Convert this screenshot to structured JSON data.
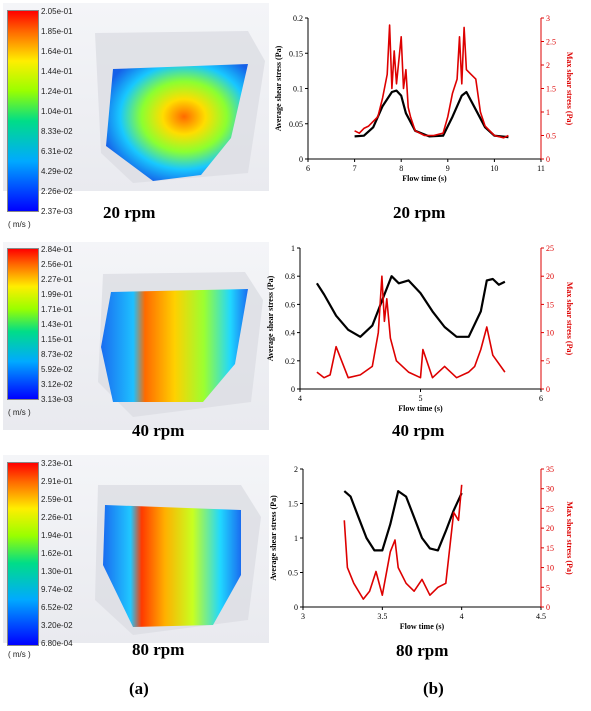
{
  "colorbars": [
    {
      "labels": [
        "2.05e-01",
        "1.85e-01",
        "1.64e-01",
        "1.44e-01",
        "1.24e-01",
        "1.04e-01",
        "8.33e-02",
        "6.31e-02",
        "4.29e-02",
        "2.26e-02",
        "2.37e-03"
      ],
      "unit": "( m/s )"
    },
    {
      "labels": [
        "2.84e-01",
        "2.56e-01",
        "2.27e-01",
        "1.99e-01",
        "1.71e-01",
        "1.43e-01",
        "1.15e-01",
        "8.73e-02",
        "5.92e-02",
        "3.12e-02",
        "3.13e-03"
      ],
      "unit": "( m/s )"
    },
    {
      "labels": [
        "3.23e-01",
        "2.91e-01",
        "2.59e-01",
        "2.26e-01",
        "1.94e-01",
        "1.62e-01",
        "1.30e-01",
        "9.74e-02",
        "6.52e-02",
        "3.20e-02",
        "6.80e-04"
      ],
      "unit": "( m/s )"
    }
  ],
  "captions": {
    "r1": "20 rpm",
    "r2": "40 rpm",
    "r3": "80 rpm",
    "left_r1": "20 rpm",
    "left_r2": "40 rpm",
    "left_r3": "80 rpm",
    "panel_a": "(a)",
    "panel_b": "(b)"
  },
  "colors": {
    "avg": "#000000",
    "max": "#dd0000"
  },
  "chart_data": [
    {
      "type": "line",
      "xlabel": "Flow time (s)",
      "ylabel": "Average shear stress (Pa)",
      "y2label": "Max shear stress (Pa)",
      "xlim": [
        6,
        11
      ],
      "ylim": [
        0,
        0.2
      ],
      "y2lim": [
        0,
        3
      ],
      "xticks": [
        "6",
        "7",
        "8",
        "9",
        "10",
        "11"
      ],
      "yticks": [
        "0",
        "0.05",
        "0.1",
        "0.15",
        "0.2"
      ],
      "y2ticks": [
        "0",
        "0.5",
        "1",
        "1.5",
        "2",
        "2.5",
        "3"
      ],
      "series": [
        {
          "axis": "left",
          "x": [
            7.0,
            7.2,
            7.4,
            7.6,
            7.8,
            7.9,
            8.0,
            8.1,
            8.3,
            8.6,
            8.9,
            9.1,
            9.3,
            9.4,
            9.6,
            9.8,
            10.0,
            10.3
          ],
          "y": [
            0.032,
            0.033,
            0.045,
            0.075,
            0.095,
            0.097,
            0.09,
            0.065,
            0.04,
            0.032,
            0.033,
            0.06,
            0.09,
            0.095,
            0.07,
            0.045,
            0.033,
            0.031
          ]
        },
        {
          "axis": "right",
          "x": [
            7.0,
            7.1,
            7.2,
            7.3,
            7.5,
            7.6,
            7.7,
            7.75,
            7.8,
            7.85,
            7.9,
            8.0,
            8.05,
            8.1,
            8.15,
            8.2,
            8.3,
            8.5,
            8.7,
            8.9,
            9.0,
            9.1,
            9.2,
            9.25,
            9.3,
            9.35,
            9.4,
            9.5,
            9.6,
            9.7,
            9.8,
            10.0,
            10.2,
            10.3
          ],
          "y": [
            0.6,
            0.55,
            0.65,
            0.7,
            0.9,
            1.3,
            1.8,
            2.85,
            1.5,
            2.3,
            1.6,
            2.6,
            1.5,
            1.9,
            1.1,
            0.9,
            0.6,
            0.5,
            0.5,
            0.55,
            0.9,
            1.4,
            1.7,
            2.6,
            1.6,
            2.8,
            1.9,
            1.8,
            1.7,
            1.0,
            0.7,
            0.5,
            0.45,
            0.5
          ]
        }
      ]
    },
    {
      "type": "line",
      "xlabel": "Flow time (s)",
      "ylabel": "Average shear stress (Pa)",
      "y2label": "Max shear stress (Pa)",
      "xlim": [
        4,
        6
      ],
      "ylim": [
        0,
        1
      ],
      "y2lim": [
        0,
        25
      ],
      "xticks": [
        "4",
        "5",
        "6"
      ],
      "yticks": [
        "0",
        "0.2",
        "0.4",
        "0.6",
        "0.8",
        "1"
      ],
      "y2ticks": [
        "0",
        "5",
        "10",
        "15",
        "20",
        "25"
      ],
      "series": [
        {
          "axis": "left",
          "x": [
            4.14,
            4.2,
            4.3,
            4.4,
            4.5,
            4.6,
            4.7,
            4.76,
            4.82,
            4.9,
            5.0,
            5.1,
            5.2,
            5.3,
            5.4,
            5.5,
            5.55,
            5.6,
            5.65,
            5.7
          ],
          "y": [
            0.75,
            0.67,
            0.52,
            0.42,
            0.37,
            0.45,
            0.67,
            0.8,
            0.75,
            0.77,
            0.68,
            0.55,
            0.44,
            0.37,
            0.37,
            0.55,
            0.77,
            0.78,
            0.74,
            0.76
          ]
        },
        {
          "axis": "right",
          "x": [
            4.14,
            4.2,
            4.25,
            4.3,
            4.4,
            4.5,
            4.6,
            4.65,
            4.68,
            4.7,
            4.72,
            4.75,
            4.8,
            4.9,
            5.0,
            5.02,
            5.1,
            5.2,
            5.3,
            5.4,
            5.45,
            5.5,
            5.55,
            5.6,
            5.7
          ],
          "y": [
            3,
            2,
            2.5,
            7.5,
            2,
            2.5,
            4,
            10,
            20,
            12,
            16,
            9,
            5,
            3,
            2,
            7,
            2,
            4,
            2,
            3,
            4,
            7,
            11,
            6,
            3
          ]
        }
      ]
    },
    {
      "type": "line",
      "xlabel": "Flow time (s)",
      "ylabel": "Average shear stress (Pa)",
      "y2label": "Max shear stress (Pa)",
      "xlim": [
        3,
        4.5
      ],
      "ylim": [
        0,
        2
      ],
      "y2lim": [
        0,
        35
      ],
      "xticks": [
        "3",
        "3.5",
        "4",
        "4.5"
      ],
      "yticks": [
        "0",
        "0.5",
        "1",
        "1.5",
        "2"
      ],
      "y2ticks": [
        "0",
        "5",
        "10",
        "15",
        "20",
        "25",
        "30",
        "35"
      ],
      "series": [
        {
          "axis": "left",
          "x": [
            3.26,
            3.3,
            3.35,
            3.4,
            3.45,
            3.5,
            3.55,
            3.6,
            3.65,
            3.7,
            3.75,
            3.8,
            3.85,
            3.9,
            3.95,
            4.0
          ],
          "y": [
            1.68,
            1.6,
            1.3,
            1.0,
            0.82,
            0.82,
            1.2,
            1.68,
            1.6,
            1.3,
            1.0,
            0.85,
            0.82,
            1.1,
            1.4,
            1.65
          ]
        },
        {
          "axis": "right",
          "x": [
            3.26,
            3.28,
            3.32,
            3.38,
            3.42,
            3.46,
            3.5,
            3.55,
            3.58,
            3.6,
            3.65,
            3.7,
            3.75,
            3.8,
            3.85,
            3.9,
            3.95,
            3.98,
            4.0
          ],
          "y": [
            22,
            10,
            6,
            2,
            4,
            9,
            3,
            14,
            17,
            10,
            6,
            4,
            7,
            3,
            5,
            6,
            24,
            22,
            31
          ]
        }
      ]
    }
  ]
}
